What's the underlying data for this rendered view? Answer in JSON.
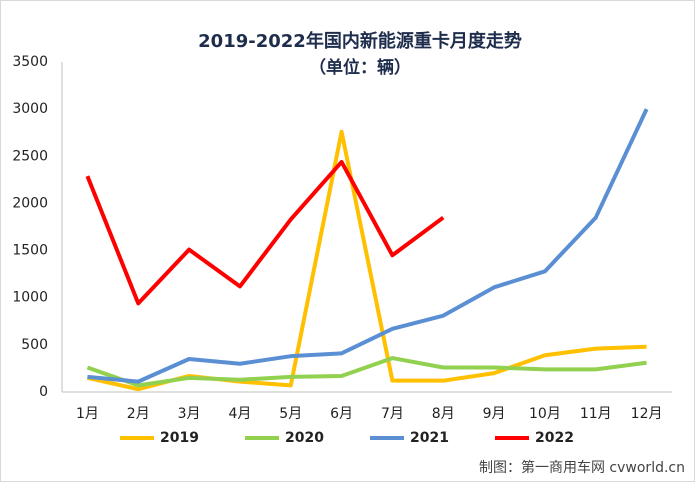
{
  "chart_data": {
    "type": "line",
    "title": "2019-2022年国内新能源重卡月度走势",
    "subtitle": "（单位：辆）",
    "categories": [
      "1月",
      "2月",
      "3月",
      "4月",
      "5月",
      "6月",
      "7月",
      "8月",
      "9月",
      "10月",
      "11月",
      "12月"
    ],
    "series": [
      {
        "name": "2019",
        "color": "#ffc000",
        "values": [
          150,
          30,
          170,
          110,
          70,
          2760,
          120,
          120,
          200,
          390,
          460,
          480
        ]
      },
      {
        "name": "2020",
        "color": "#92d050",
        "values": [
          260,
          70,
          150,
          130,
          160,
          170,
          360,
          260,
          260,
          240,
          240,
          310
        ]
      },
      {
        "name": "2021",
        "color": "#5b8fd4",
        "values": [
          160,
          110,
          350,
          300,
          380,
          410,
          670,
          810,
          1110,
          1280,
          1850,
          3000
        ]
      },
      {
        "name": "2022",
        "color": "#ff0000",
        "values": [
          2290,
          940,
          1510,
          1120,
          1830,
          2440,
          1450,
          1850,
          null,
          null,
          null,
          null
        ]
      }
    ],
    "ylim": [
      0,
      3500
    ],
    "yticks": [
      0,
      500,
      1000,
      1500,
      2000,
      2500,
      3000,
      3500
    ],
    "grid": false,
    "legend": "bottom",
    "footer": "制图：第一商用车网 cvworld.cn"
  }
}
